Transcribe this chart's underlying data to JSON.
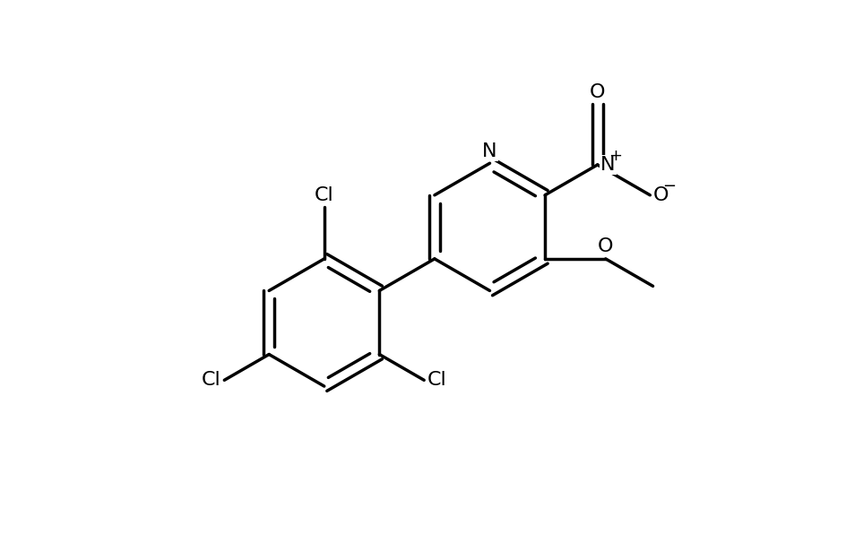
{
  "background_color": "#ffffff",
  "line_color": "#000000",
  "line_width": 2.5,
  "font_size": 16,
  "figsize": [
    9.44,
    6.15
  ],
  "dpi": 100,
  "xlim": [
    -1.0,
    10.0
  ],
  "ylim": [
    -1.5,
    7.5
  ]
}
